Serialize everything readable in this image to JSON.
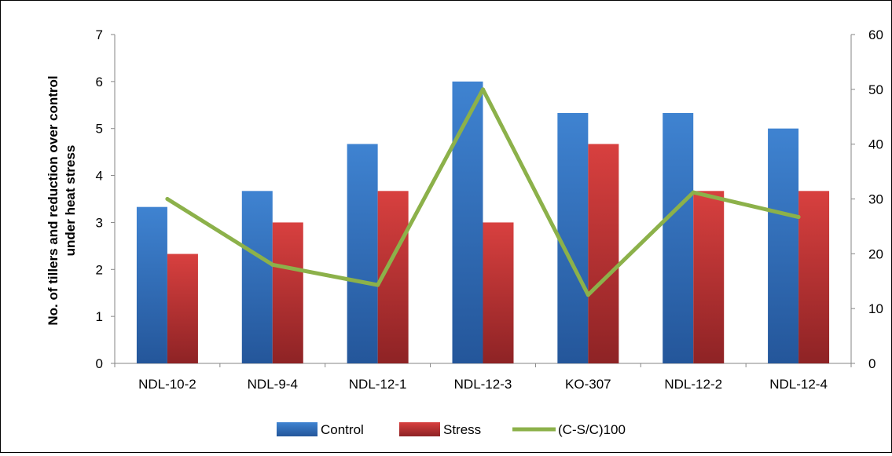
{
  "chart_data": {
    "type": "bar",
    "categories": [
      "NDL-10-2",
      "NDL-9-4",
      "NDL-12-1",
      "NDL-12-3",
      "KO-307",
      "NDL-12-2",
      "NDL-12-4"
    ],
    "series": [
      {
        "name": "Control",
        "type": "bar",
        "axis": "left",
        "color": "#3a78c2",
        "values": [
          3.33,
          3.67,
          4.67,
          6.0,
          5.33,
          5.33,
          5.0
        ]
      },
      {
        "name": "Stress",
        "type": "bar",
        "axis": "left",
        "color": "#c8383a",
        "values": [
          2.33,
          3.0,
          3.67,
          3.0,
          4.67,
          3.67,
          3.67
        ]
      },
      {
        "name": "(C-S/C)100",
        "type": "line",
        "axis": "right",
        "color": "#8cb14a",
        "values": [
          30,
          18,
          14.3,
          50,
          12.5,
          31.2,
          26.7
        ]
      }
    ],
    "title": "",
    "xlabel": "",
    "ylabel": "No. of tillers and reduction over control under heat stress",
    "ylim": [
      0,
      7
    ],
    "y2lim": [
      0,
      60
    ],
    "yticks": [
      "0",
      "1",
      "2",
      "3",
      "4",
      "5",
      "6",
      "7"
    ],
    "y2ticks": [
      "0",
      "10",
      "20",
      "30",
      "40",
      "50",
      "60"
    ],
    "grid": false,
    "legend": "bottom"
  }
}
